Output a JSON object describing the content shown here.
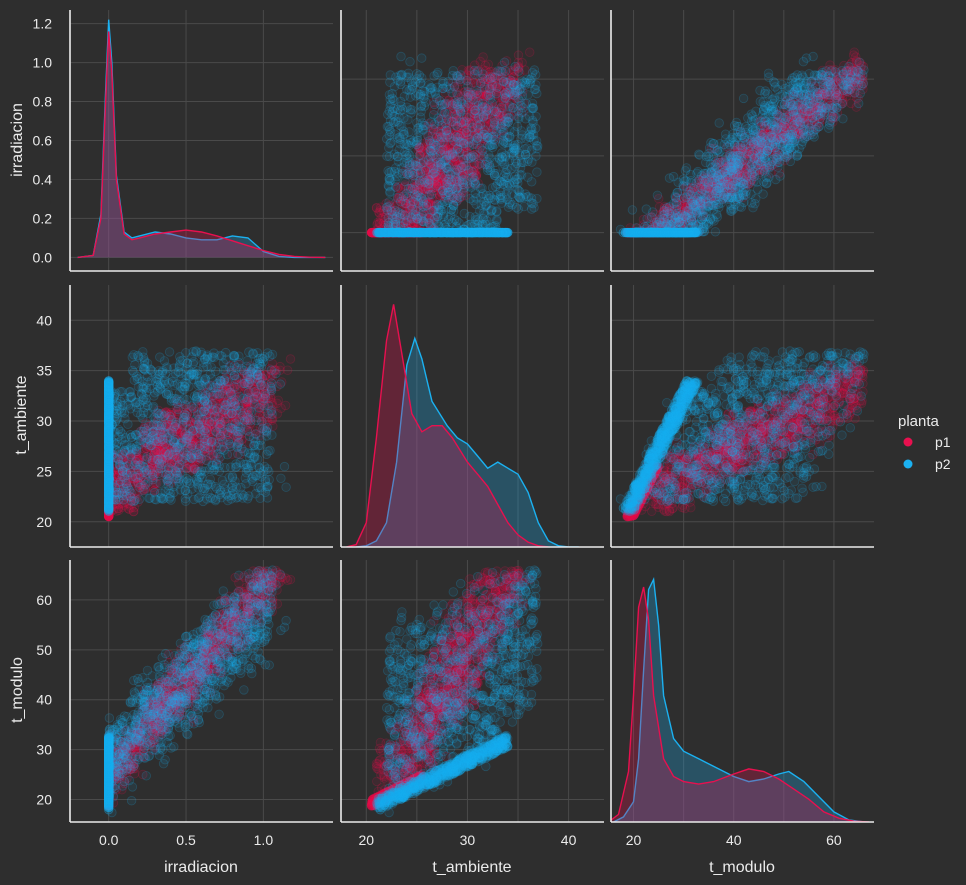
{
  "figure": {
    "background": "#2e2e2e",
    "grid_color": "#4a4a4a",
    "text_color": "#ebebeb"
  },
  "chart_data": {
    "type": "pairplot",
    "variables": [
      "irradiacion",
      "t_ambiente",
      "t_modulo"
    ],
    "hue": "planta",
    "legend": {
      "title": "planta",
      "position": "right",
      "entries": [
        {
          "name": "p1",
          "color": "#e8104f"
        },
        {
          "name": "p2",
          "color": "#1bb1f1"
        }
      ]
    },
    "axes": {
      "irradiacion": {
        "label": "irradiacion",
        "range": [
          -0.25,
          1.45
        ],
        "ticks": [
          0.0,
          0.5,
          1.0
        ],
        "tick_labels": [
          "0.0",
          "0.5",
          "1.0"
        ]
      },
      "t_ambiente": {
        "label": "t_ambiente",
        "range": [
          17.5,
          43.5
        ],
        "ticks": [
          20,
          25,
          30,
          35,
          40
        ],
        "tick_labels": [
          "20",
          "25",
          "30",
          "35",
          "40"
        ]
      },
      "t_modulo": {
        "label": "t_modulo",
        "range": [
          15.5,
          68
        ],
        "ticks": [
          20,
          30,
          40,
          50,
          60
        ],
        "tick_labels": [
          "20",
          "30",
          "40",
          "50",
          "60"
        ]
      }
    },
    "diag_y_ranges": {
      "irradiacion": [
        -0.07,
        1.27
      ]
    },
    "diag_y_ticks": [
      0.0,
      0.2,
      0.4,
      0.6,
      0.8,
      1.0,
      1.2
    ],
    "diag_y_tick_labels": [
      "0.0",
      "0.2",
      "0.4",
      "0.6",
      "0.8",
      "1.0",
      "1.2"
    ],
    "bottom_x_ticks": {
      "irradiacion": {
        "values": [
          0.0,
          0.5,
          1.0
        ],
        "labels": [
          "0.0",
          "0.5",
          "1.0"
        ]
      },
      "t_ambiente": {
        "values": [
          20,
          30,
          40
        ],
        "labels": [
          "20",
          "30",
          "40"
        ]
      },
      "t_modulo": {
        "values": [
          20,
          40,
          60
        ],
        "labels": [
          "20",
          "40",
          "60"
        ]
      }
    },
    "kde": {
      "irradiacion": {
        "p1": {
          "x": [
            -0.2,
            -0.1,
            -0.05,
            -0.02,
            0.0,
            0.02,
            0.05,
            0.1,
            0.15,
            0.2,
            0.3,
            0.4,
            0.5,
            0.6,
            0.7,
            0.8,
            0.9,
            1.0,
            1.1,
            1.2,
            1.3,
            1.4
          ],
          "y": [
            0,
            0.01,
            0.2,
            0.8,
            1.16,
            0.95,
            0.4,
            0.12,
            0.09,
            0.1,
            0.12,
            0.13,
            0.14,
            0.13,
            0.11,
            0.085,
            0.06,
            0.035,
            0.015,
            0.005,
            0.001,
            0
          ]
        },
        "p2": {
          "x": [
            -0.2,
            -0.1,
            -0.05,
            -0.02,
            0.0,
            0.02,
            0.05,
            0.1,
            0.15,
            0.2,
            0.3,
            0.4,
            0.5,
            0.6,
            0.7,
            0.8,
            0.9,
            1.0,
            1.1,
            1.2,
            1.3,
            1.4
          ],
          "y": [
            0,
            0.01,
            0.22,
            0.85,
            1.22,
            1.0,
            0.42,
            0.13,
            0.1,
            0.11,
            0.13,
            0.12,
            0.1,
            0.09,
            0.09,
            0.11,
            0.1,
            0.03,
            0.005,
            0,
            0,
            0
          ]
        }
      },
      "t_ambiente": {
        "p1": {
          "x": [
            18,
            19,
            20,
            21,
            22,
            22.7,
            23.5,
            24.5,
            25.5,
            26.5,
            27.5,
            28.5,
            30,
            31,
            32,
            33,
            34,
            35,
            36,
            37,
            38
          ],
          "y": [
            0,
            0.002,
            0.02,
            0.09,
            0.17,
            0.2,
            0.16,
            0.11,
            0.095,
            0.1,
            0.1,
            0.09,
            0.07,
            0.06,
            0.05,
            0.035,
            0.02,
            0.01,
            0.004,
            0.001,
            0
          ]
        },
        "p2": {
          "x": [
            19,
            20,
            21,
            22,
            23,
            24,
            24.8,
            25.5,
            26.5,
            28,
            29,
            30,
            31,
            32,
            33,
            34,
            35,
            36,
            37,
            38,
            39,
            40,
            41
          ],
          "y": [
            0,
            0.001,
            0.005,
            0.02,
            0.07,
            0.15,
            0.172,
            0.155,
            0.12,
            0.1,
            0.09,
            0.085,
            0.075,
            0.065,
            0.07,
            0.065,
            0.06,
            0.045,
            0.02,
            0.005,
            0.001,
            0,
            0
          ]
        }
      },
      "t_modulo": {
        "p1": {
          "x": [
            15,
            17,
            19,
            20,
            21,
            22,
            23,
            24,
            26,
            28,
            30,
            33,
            36,
            40,
            43,
            46,
            49,
            52,
            55,
            58,
            61,
            64,
            67
          ],
          "y": [
            0,
            0.003,
            0.02,
            0.05,
            0.085,
            0.093,
            0.08,
            0.05,
            0.025,
            0.018,
            0.016,
            0.015,
            0.016,
            0.019,
            0.021,
            0.02,
            0.017,
            0.013,
            0.009,
            0.004,
            0.0015,
            0.0003,
            0
          ]
        },
        "p2": {
          "x": [
            16,
            18,
            20,
            21,
            22,
            23,
            24,
            25,
            26,
            28,
            30,
            33,
            36,
            40,
            43,
            46,
            49,
            51,
            54,
            57,
            60,
            63,
            66
          ],
          "y": [
            0,
            0.002,
            0.008,
            0.025,
            0.06,
            0.092,
            0.096,
            0.078,
            0.05,
            0.033,
            0.028,
            0.025,
            0.022,
            0.018,
            0.016,
            0.017,
            0.019,
            0.02,
            0.016,
            0.01,
            0.004,
            0.0008,
            0
          ]
        }
      }
    },
    "diagonal_density_note": ""
  }
}
